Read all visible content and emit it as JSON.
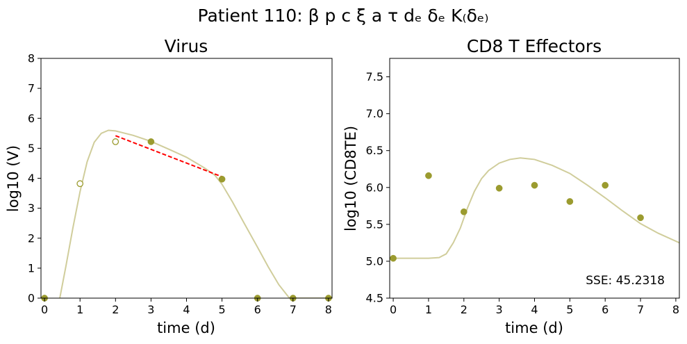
{
  "figure_title": "Patient 110: β p c ξ a τ dₑ δₑ K₍δₑ₎",
  "colors": {
    "model_curve": "#d0cd9b",
    "observed": "#9b9b2f",
    "fit_line": "#ff0000"
  },
  "chart_data": [
    {
      "type": "scatter",
      "title": "Virus",
      "xlabel": "time (d)",
      "ylabel": "log10 (V)",
      "xlim": [
        -0.1,
        8.1
      ],
      "ylim": [
        0,
        8
      ],
      "xticks": [
        0,
        1,
        2,
        3,
        4,
        5,
        6,
        7,
        8
      ],
      "yticks": [
        0,
        1,
        2,
        3,
        4,
        5,
        6,
        7,
        8
      ],
      "ytick_labels": [
        "0",
        "1",
        "2",
        "3",
        "4",
        "5",
        "6",
        "7",
        "8"
      ],
      "grid": false,
      "observed_filled": {
        "x": [
          0,
          3,
          5,
          6,
          7,
          8
        ],
        "y": [
          0,
          5.22,
          3.97,
          0,
          0,
          0
        ]
      },
      "observed_open": {
        "x": [
          1,
          2
        ],
        "y": [
          3.82,
          5.22
        ]
      },
      "fit_segment": {
        "x": [
          2,
          5
        ],
        "y": [
          5.42,
          4.05
        ]
      },
      "model_curve": {
        "x": [
          0.43,
          0.6,
          0.8,
          1.0,
          1.2,
          1.4,
          1.6,
          1.8,
          2.0,
          2.2,
          2.5,
          3.0,
          3.5,
          4.0,
          4.5,
          4.8,
          5.0,
          5.3,
          5.6,
          6.0,
          6.3,
          6.6,
          6.9,
          8.1
        ],
        "y": [
          0,
          1.05,
          2.35,
          3.55,
          4.55,
          5.2,
          5.5,
          5.6,
          5.58,
          5.52,
          5.43,
          5.23,
          4.97,
          4.7,
          4.35,
          4.1,
          3.8,
          3.2,
          2.55,
          1.7,
          1.05,
          0.45,
          0,
          0
        ]
      }
    },
    {
      "type": "scatter",
      "title": "CD8 T Effectors",
      "xlabel": "time (d)",
      "ylabel": "log10 (CD8TE)",
      "xlim": [
        -0.1,
        8.1
      ],
      "ylim": [
        4.5,
        7.75
      ],
      "xticks": [
        0,
        1,
        2,
        3,
        4,
        5,
        6,
        7,
        8
      ],
      "yticks": [
        4.5,
        5.0,
        5.5,
        6.0,
        6.5,
        7.0,
        7.5
      ],
      "ytick_labels": [
        "4.5",
        "5.0",
        "5.5",
        "6.0",
        "6.5",
        "7.0",
        "7.5"
      ],
      "grid": false,
      "annotation": "SSE: 45.2318",
      "observed_filled": {
        "x": [
          0,
          1,
          2,
          3,
          4,
          5,
          6,
          7
        ],
        "y": [
          5.04,
          6.16,
          5.67,
          5.99,
          6.03,
          5.81,
          6.03,
          5.59
        ]
      },
      "model_curve": {
        "x": [
          -0.1,
          0.5,
          1.0,
          1.3,
          1.5,
          1.7,
          1.9,
          2.1,
          2.3,
          2.5,
          2.7,
          3.0,
          3.3,
          3.6,
          4.0,
          4.5,
          5.0,
          5.5,
          6.0,
          6.5,
          7.0,
          7.5,
          8.1
        ],
        "y": [
          5.04,
          5.04,
          5.04,
          5.05,
          5.1,
          5.25,
          5.45,
          5.72,
          5.95,
          6.12,
          6.23,
          6.33,
          6.38,
          6.4,
          6.38,
          6.3,
          6.19,
          6.03,
          5.86,
          5.68,
          5.51,
          5.38,
          5.25
        ]
      }
    }
  ]
}
